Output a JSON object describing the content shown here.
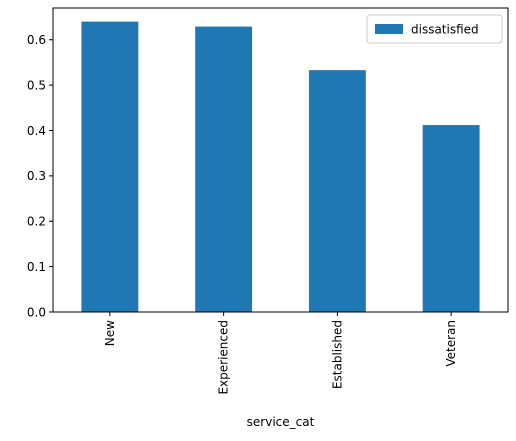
{
  "chart_data": {
    "type": "bar",
    "categories": [
      "New",
      "Experienced",
      "Established",
      "Veteran"
    ],
    "series": [
      {
        "name": "dissatisfied",
        "values": [
          0.64,
          0.629,
          0.533,
          0.412
        ],
        "color": "#1f77b4"
      }
    ],
    "xlabel": "service_cat",
    "ylabel": "",
    "title": "",
    "ylim": [
      0.0,
      0.67
    ],
    "yticks": [
      0.0,
      0.1,
      0.2,
      0.3,
      0.4,
      0.5,
      0.6
    ],
    "ytick_labels": [
      "0.0",
      "0.1",
      "0.2",
      "0.3",
      "0.4",
      "0.5",
      "0.6"
    ],
    "grid": false,
    "legend_position": "top-right"
  }
}
